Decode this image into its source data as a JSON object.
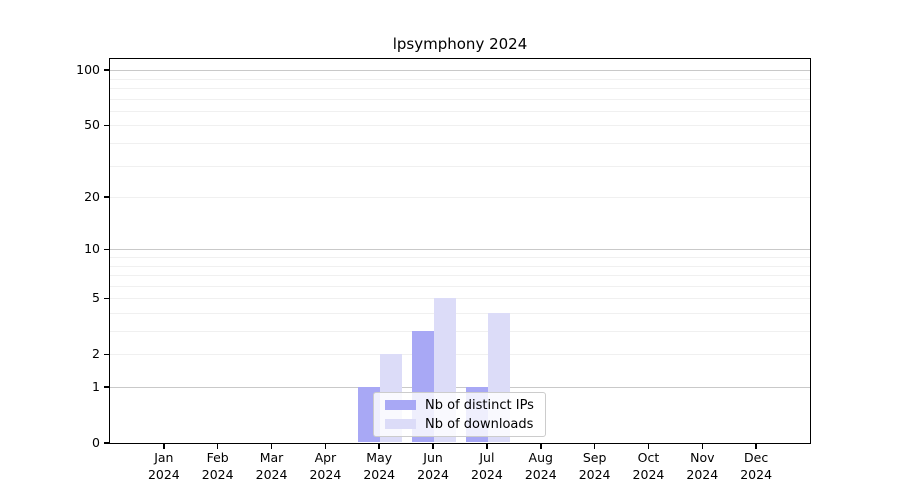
{
  "chart_data": {
    "type": "bar",
    "title": "lpsymphony 2024",
    "categories": [
      "Jan",
      "Feb",
      "Mar",
      "Apr",
      "May",
      "Jun",
      "Jul",
      "Aug",
      "Sep",
      "Oct",
      "Nov",
      "Dec"
    ],
    "category_year": "2024",
    "series": [
      {
        "name": "Nb of distinct IPs",
        "color": "#a8a8f5",
        "values": [
          0,
          0,
          0,
          0,
          1,
          3,
          1,
          0,
          0,
          0,
          0,
          0
        ]
      },
      {
        "name": "Nb of downloads",
        "color": "#dcdcf8",
        "values": [
          0,
          0,
          0,
          0,
          2,
          5,
          4,
          0,
          0,
          0,
          0,
          0
        ]
      }
    ],
    "y_scale": "log1p",
    "y_ticks": [
      0,
      1,
      2,
      5,
      10,
      20,
      50,
      100
    ],
    "ylim": [
      0,
      115
    ],
    "grid": "horizontal-minor-and-major",
    "grid_minor_color": "#f0f0f0",
    "grid_major_color": "#c9c9c9",
    "axis_color": "#000000",
    "legend_position": "inside-bottom-center"
  }
}
